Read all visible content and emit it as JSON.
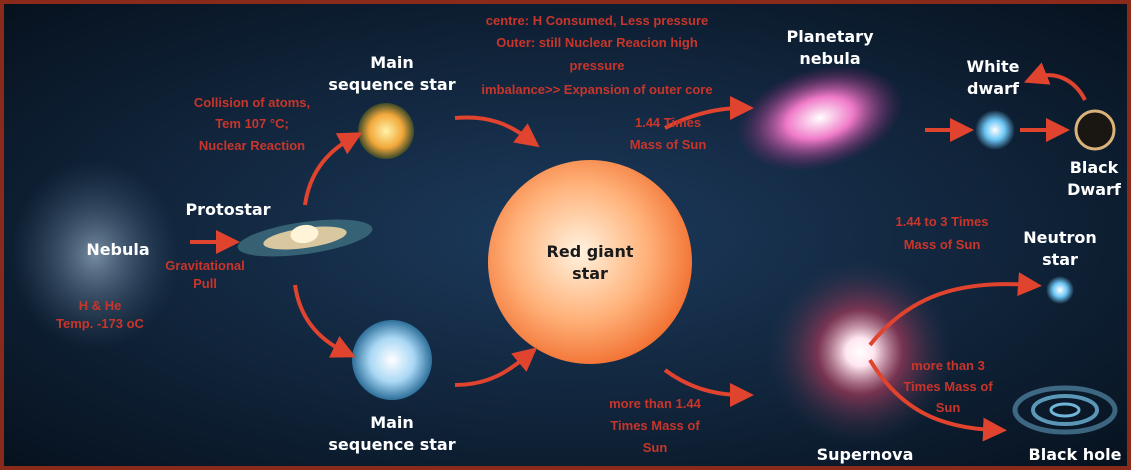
{
  "nodes": [
    {
      "label": [
        "Nebula"
      ]
    },
    {
      "label": [
        "Protostar"
      ]
    },
    {
      "label": [
        "Main",
        "sequence star"
      ]
    },
    {
      "label": [
        "Main",
        "sequence star"
      ]
    },
    {
      "label": [
        "Red giant",
        "star"
      ]
    },
    {
      "label": [
        "Planetary",
        "nebula"
      ]
    },
    {
      "label": [
        "White",
        "dwarf"
      ]
    },
    {
      "label": [
        "Black",
        "Dwarf"
      ]
    },
    {
      "label": [
        "Supernova"
      ]
    },
    {
      "label": [
        "Neutron",
        "star"
      ]
    },
    {
      "label": [
        "Black hole"
      ]
    }
  ],
  "annotations": [
    {
      "lines": [
        "H & He",
        "Temp. -173 oC"
      ]
    },
    {
      "lines": [
        "Gravitational",
        "Pull"
      ]
    },
    {
      "lines": [
        "Collision of atoms,",
        "Tem 107 °C;",
        "Nuclear Reaction"
      ]
    },
    {
      "lines": [
        "centre: H Consumed, Less pressure",
        "Outer: still Nuclear Reacion high",
        "pressure",
        "imbalance>> Expansion of outer core"
      ]
    },
    {
      "lines": [
        "1.44 Times",
        "Mass of Sun"
      ]
    },
    {
      "lines": [
        "1.44 to 3 Times",
        "Mass of Sun"
      ]
    },
    {
      "lines": [
        "more than 1.44",
        "Times Mass of",
        "Sun"
      ]
    },
    {
      "lines": [
        "more than 3",
        "Times Mass of",
        "Sun"
      ]
    }
  ]
}
